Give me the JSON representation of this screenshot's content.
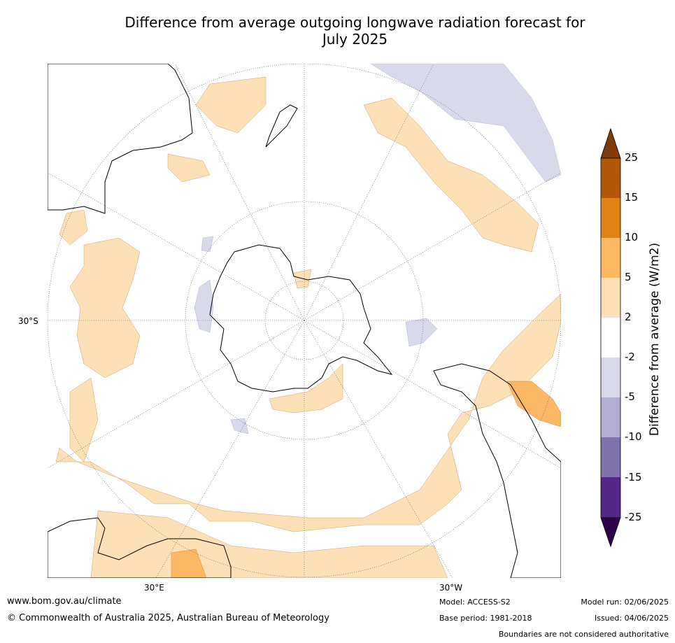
{
  "title": {
    "line1": "Difference from average outgoing longwave radiation forecast for",
    "line2": "July 2025"
  },
  "map": {
    "projection": "south-polar-stereographic",
    "lat_labels": [
      "30°S"
    ],
    "lon_labels": [
      "30°E",
      "30°W"
    ]
  },
  "colorbar": {
    "label": "Difference from average (W/m2)",
    "ticks": [
      "25",
      "15",
      "10",
      "5",
      "2",
      "-2",
      "-5",
      "-10",
      "-15",
      "-25"
    ],
    "colors": {
      "above_25": "#7f3b08",
      "15_25": "#b35806",
      "10_15": "#e08214",
      "5_10": "#fdb863",
      "2_5": "#fee0b6",
      "neg2_2": "#ffffff",
      "neg5_neg2": "#d8daeb",
      "neg10_neg5": "#b2abd2",
      "neg15_neg10": "#8073ac",
      "neg25_neg15": "#542788",
      "below_neg25": "#2d004b"
    }
  },
  "footer": {
    "url": "www.bom.gov.au/climate",
    "copyright": "© Commonwealth of Australia 2025, Australian Bureau of Meteorology",
    "model": "Model: ACCESS-S2",
    "base_period": "Base period: 1981-2018",
    "model_run": "Model run: 02/06/2025",
    "issued": "Issued: 04/06/2025",
    "disclaimer": "Boundaries are not considered authoritative"
  }
}
